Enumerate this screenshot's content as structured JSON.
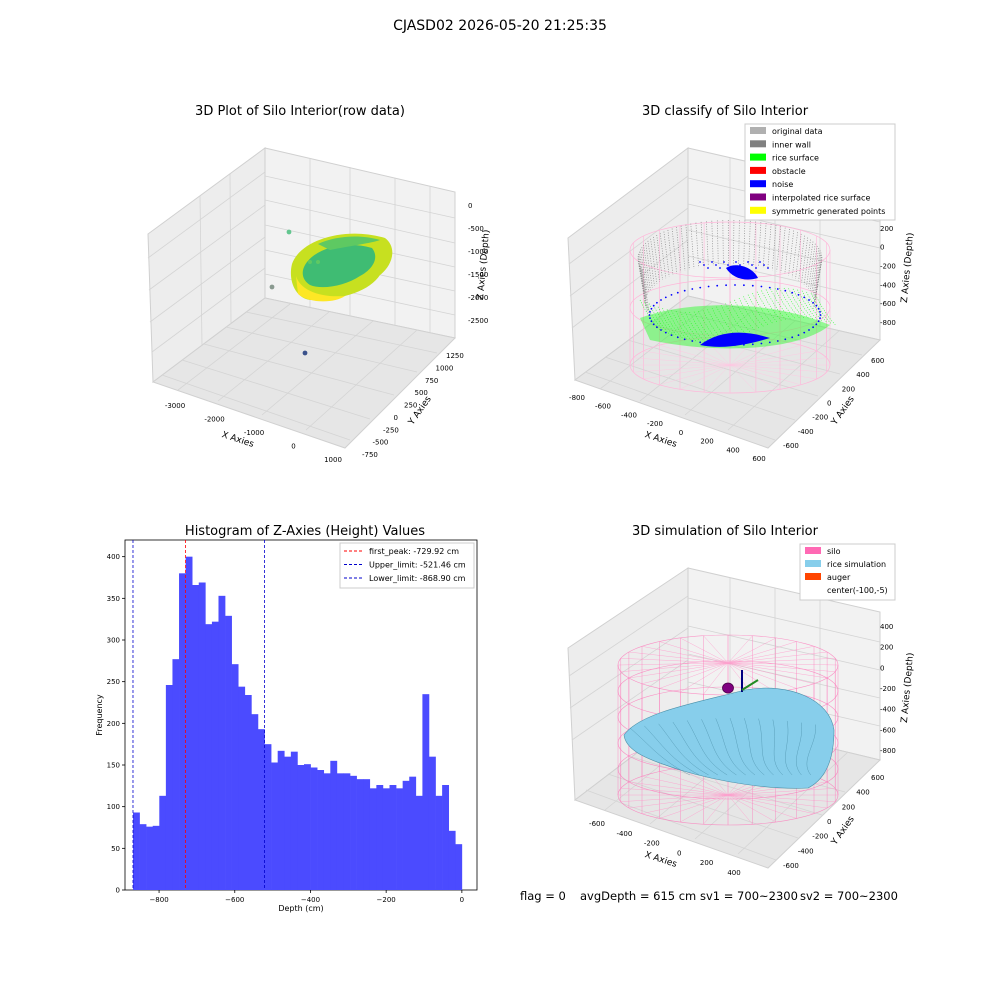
{
  "figure": {
    "suptitle": "CJASD02 2026-05-20 21:25:35"
  },
  "chart_data": [
    {
      "type": "scatter",
      "title": "3D Plot of Silo Interior(row data)",
      "xlabel": "X Axies",
      "ylabel": "Y Axies",
      "zlabel": "Z Axies (Depth)",
      "xticks": [
        "-3000",
        "-2000",
        "-1000",
        "0",
        "1000"
      ],
      "yticks": [
        "-750",
        "-500",
        "-250",
        "0",
        "250",
        "500",
        "750",
        "1000",
        "1250"
      ],
      "zticks": [
        "0",
        "-500",
        "-1000",
        "-1500",
        "-2000",
        "-2500"
      ],
      "colormap": [
        "#3b528b",
        "#21908d",
        "#5ec962",
        "#fde725"
      ]
    },
    {
      "type": "scatter",
      "title": "3D classify of Silo Interior",
      "xlabel": "X Axies",
      "ylabel": "Y Axies",
      "zlabel": "Z Axies (Depth)",
      "xticks": [
        "-800",
        "-600",
        "-400",
        "-200",
        "0",
        "200",
        "400",
        "600"
      ],
      "yticks": [
        "-600",
        "-400",
        "-200",
        "0",
        "200",
        "400",
        "600"
      ],
      "zticks": [
        "400",
        "200",
        "0",
        "-200",
        "-400",
        "-600",
        "-800"
      ],
      "legend": [
        {
          "label": "original data",
          "color": "#b0b0b0"
        },
        {
          "label": "inner wall",
          "color": "#808080"
        },
        {
          "label": "rice surface",
          "color": "#00ff00"
        },
        {
          "label": "obstacle",
          "color": "#ff0000"
        },
        {
          "label": "noise",
          "color": "#0000ff"
        },
        {
          "label": "interpolated rice surface",
          "color": "#800080"
        },
        {
          "label": "symmetric generated points",
          "color": "#ffff00"
        }
      ],
      "legend_position": "top-right"
    },
    {
      "type": "bar",
      "title": "Histogram of Z-Axies (Height) Values",
      "xlabel": "Depth (cm)",
      "ylabel": "Frequency",
      "xlim": [
        -890,
        40
      ],
      "ylim": [
        0,
        420
      ],
      "xticks": [
        -800,
        -600,
        -400,
        -200,
        0
      ],
      "yticks": [
        0,
        50,
        100,
        150,
        200,
        250,
        300,
        350,
        400
      ],
      "bin_start": -868.9,
      "bin_width": 17.378,
      "counts": [
        93,
        79,
        76,
        77,
        113,
        246,
        277,
        380,
        400,
        366,
        369,
        319,
        322,
        353,
        329,
        271,
        244,
        234,
        211,
        193,
        175,
        153,
        167,
        160,
        166,
        150,
        151,
        147,
        144,
        140,
        155,
        140,
        140,
        137,
        133,
        133,
        122,
        126,
        122,
        126,
        122,
        131,
        136,
        113,
        235,
        160,
        113,
        126,
        71,
        55
      ],
      "bar_color": "#4b4bff",
      "lines": [
        {
          "label": "first_peak: -729.92 cm",
          "x": -729.92,
          "color": "#ff0000"
        },
        {
          "label": "Upper_limit: -521.46 cm",
          "x": -521.46,
          "color": "#0000cc"
        },
        {
          "label": "Lower_limit: -868.90 cm",
          "x": -868.9,
          "color": "#0000cc"
        }
      ],
      "legend_position": "top-right"
    },
    {
      "type": "scatter",
      "title": "3D simulation of Silo Interior",
      "xlabel": "X Axies",
      "ylabel": "Y Axies",
      "zlabel": "Z Axies (Depth)",
      "xticks": [
        "-600",
        "-400",
        "-200",
        "0",
        "200",
        "400"
      ],
      "yticks": [
        "-600",
        "-400",
        "-200",
        "0",
        "200",
        "400",
        "600"
      ],
      "zticks": [
        "400",
        "200",
        "0",
        "-200",
        "-400",
        "-600",
        "-800"
      ],
      "legend": [
        {
          "label": "silo",
          "color": "#ff69b4"
        },
        {
          "label": "rice simulation",
          "color": "#87ceeb"
        },
        {
          "label": "auger",
          "color": "#ff4500"
        },
        {
          "label": "center(-100,-5)",
          "color": "none"
        }
      ],
      "legend_position": "top-right"
    }
  ],
  "status": {
    "flag": "flag = 0",
    "avg": "avgDepth = 615 cm",
    "sv1": "sv1 = 700~2300",
    "sv2": "sv2 = 700~2300"
  }
}
